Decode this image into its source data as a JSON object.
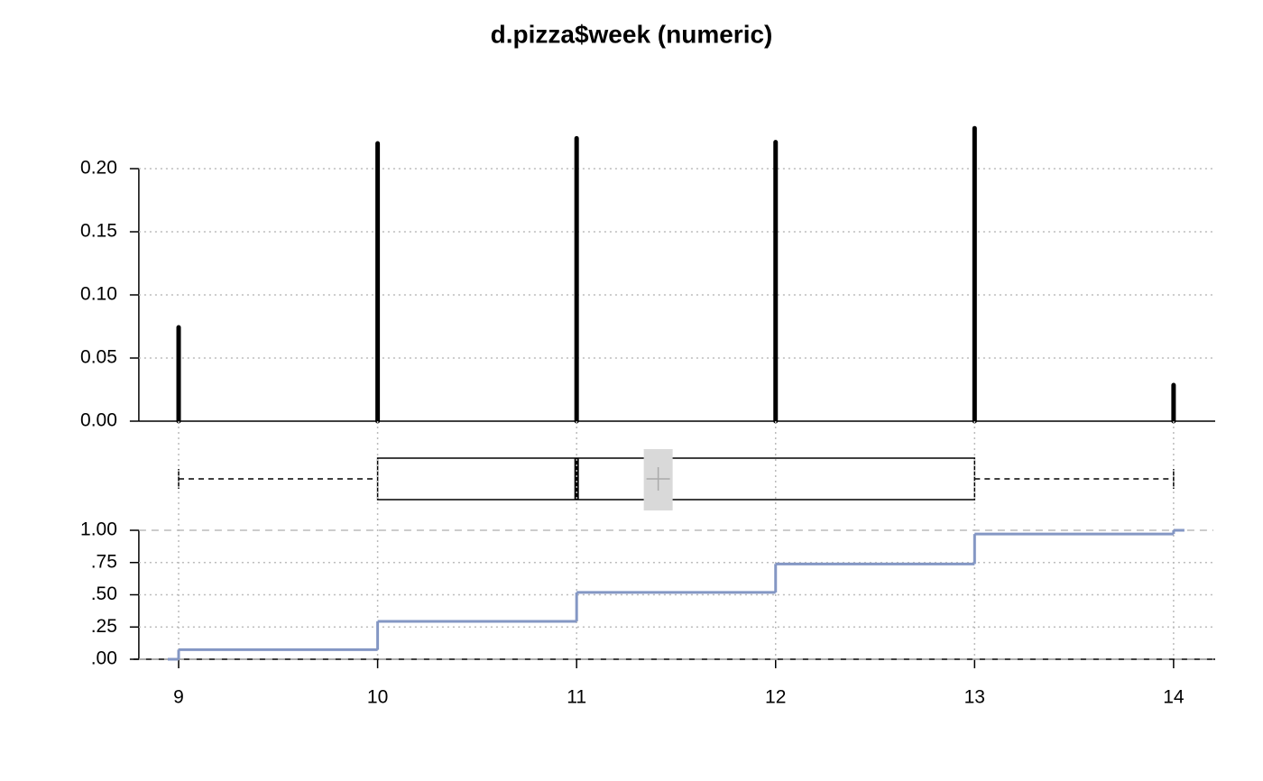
{
  "chart_data": [
    {
      "type": "needle",
      "title": "d.pizza$week (numeric)",
      "x": [
        9,
        10,
        11,
        12,
        13,
        14
      ],
      "values": [
        0.0743,
        0.22,
        0.224,
        0.221,
        0.232,
        0.0286
      ],
      "color": "#000000",
      "xlim": [
        8.8,
        14.2
      ],
      "ylim": [
        0,
        0.235
      ],
      "yticks": [
        {
          "value": 0,
          "label": "0.00"
        },
        {
          "value": 0.05,
          "label": "0.05"
        },
        {
          "value": 0.1,
          "label": "0.10"
        },
        {
          "value": 0.15,
          "label": "0.15"
        },
        {
          "value": 0.2,
          "label": "0.20"
        }
      ],
      "grid": true
    },
    {
      "type": "box",
      "min": 9,
      "q1": 10,
      "median": 11,
      "q3": 13,
      "max": 14,
      "mean": 11.41,
      "xlim": [
        8.8,
        14.2
      ]
    },
    {
      "type": "step",
      "x": [
        9,
        10,
        11,
        12,
        13,
        14
      ],
      "values": [
        0.074,
        0.294,
        0.518,
        0.739,
        0.971,
        1.0
      ],
      "color": "#8497c4",
      "xlim": [
        8.8,
        14.2
      ],
      "ylim": [
        0,
        1
      ],
      "yticks": [
        {
          "value": 0,
          "label": ".00"
        },
        {
          "value": 0.25,
          "label": ".25"
        },
        {
          "value": 0.5,
          "label": ".50"
        },
        {
          "value": 0.75,
          "label": ".75"
        },
        {
          "value": 1,
          "label": "1.00"
        }
      ],
      "xticks": [
        9,
        10,
        11,
        12,
        13,
        14
      ],
      "grid": true
    }
  ]
}
